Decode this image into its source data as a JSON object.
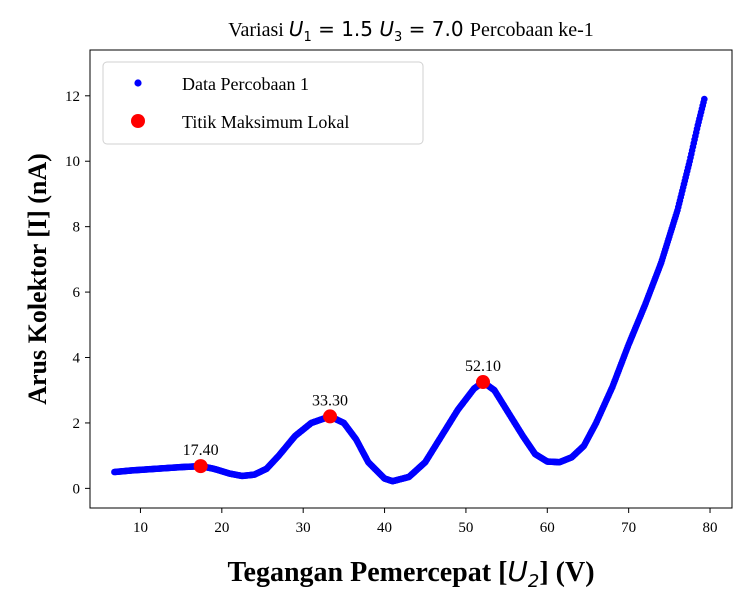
{
  "chart_data": {
    "type": "scatter",
    "title": {
      "prefix": "Variasi ",
      "u1_symbol": "U",
      "u1_sub": "1",
      "u1_value": " = 1.5 ",
      "u3_symbol": "U",
      "u3_sub": "3",
      "u3_value": " = 7.0 ",
      "suffix": "Percobaan ke-1"
    },
    "xlabel": {
      "prefix": "Tegangan Pemercepat [",
      "symbol": "U",
      "sub": "2",
      "suffix": "] (V)"
    },
    "ylabel": "Arus Kolektor [I] (nA)",
    "xlim": [
      3.8,
      82.7
    ],
    "ylim": [
      -0.6,
      13.4
    ],
    "xticks": [
      10,
      20,
      30,
      40,
      50,
      60,
      70,
      80
    ],
    "yticks": [
      0,
      2,
      4,
      6,
      8,
      10,
      12
    ],
    "grid": false,
    "legend_position": "upper-left",
    "series": [
      {
        "name": "Data Percobaan 1",
        "color": "#0000ff",
        "marker": "small-dot",
        "x_start": 6.8,
        "x_end": 79.3,
        "x_step": 0.1,
        "curve_knots": [
          [
            6.8,
            0.5
          ],
          [
            9,
            0.55
          ],
          [
            12,
            0.6
          ],
          [
            15,
            0.65
          ],
          [
            17.4,
            0.68
          ],
          [
            19,
            0.6
          ],
          [
            21,
            0.45
          ],
          [
            22.5,
            0.38
          ],
          [
            24,
            0.42
          ],
          [
            25.5,
            0.6
          ],
          [
            27,
            1.0
          ],
          [
            29,
            1.6
          ],
          [
            31,
            2.0
          ],
          [
            33.3,
            2.2
          ],
          [
            35,
            2.0
          ],
          [
            36.5,
            1.5
          ],
          [
            38,
            0.8
          ],
          [
            40,
            0.3
          ],
          [
            41,
            0.22
          ],
          [
            43,
            0.35
          ],
          [
            45,
            0.8
          ],
          [
            47,
            1.6
          ],
          [
            49,
            2.4
          ],
          [
            51,
            3.05
          ],
          [
            52.1,
            3.25
          ],
          [
            53.5,
            3.0
          ],
          [
            55,
            2.4
          ],
          [
            57,
            1.6
          ],
          [
            58.5,
            1.05
          ],
          [
            60,
            0.82
          ],
          [
            61.5,
            0.8
          ],
          [
            63,
            0.95
          ],
          [
            64.5,
            1.3
          ],
          [
            66,
            2.0
          ],
          [
            68,
            3.1
          ],
          [
            70,
            4.4
          ],
          [
            72,
            5.6
          ],
          [
            74,
            6.9
          ],
          [
            76,
            8.5
          ],
          [
            77.5,
            10.0
          ],
          [
            78.5,
            11.1
          ],
          [
            79,
            11.6
          ],
          [
            79.3,
            11.9
          ]
        ]
      },
      {
        "name": "Titik Maksimum Lokal",
        "color": "#ff0000",
        "marker": "large-dot",
        "points": [
          {
            "x": 17.4,
            "y": 0.68,
            "label": "17.40"
          },
          {
            "x": 33.3,
            "y": 2.2,
            "label": "33.30"
          },
          {
            "x": 52.1,
            "y": 3.25,
            "label": "52.10"
          }
        ]
      }
    ]
  }
}
